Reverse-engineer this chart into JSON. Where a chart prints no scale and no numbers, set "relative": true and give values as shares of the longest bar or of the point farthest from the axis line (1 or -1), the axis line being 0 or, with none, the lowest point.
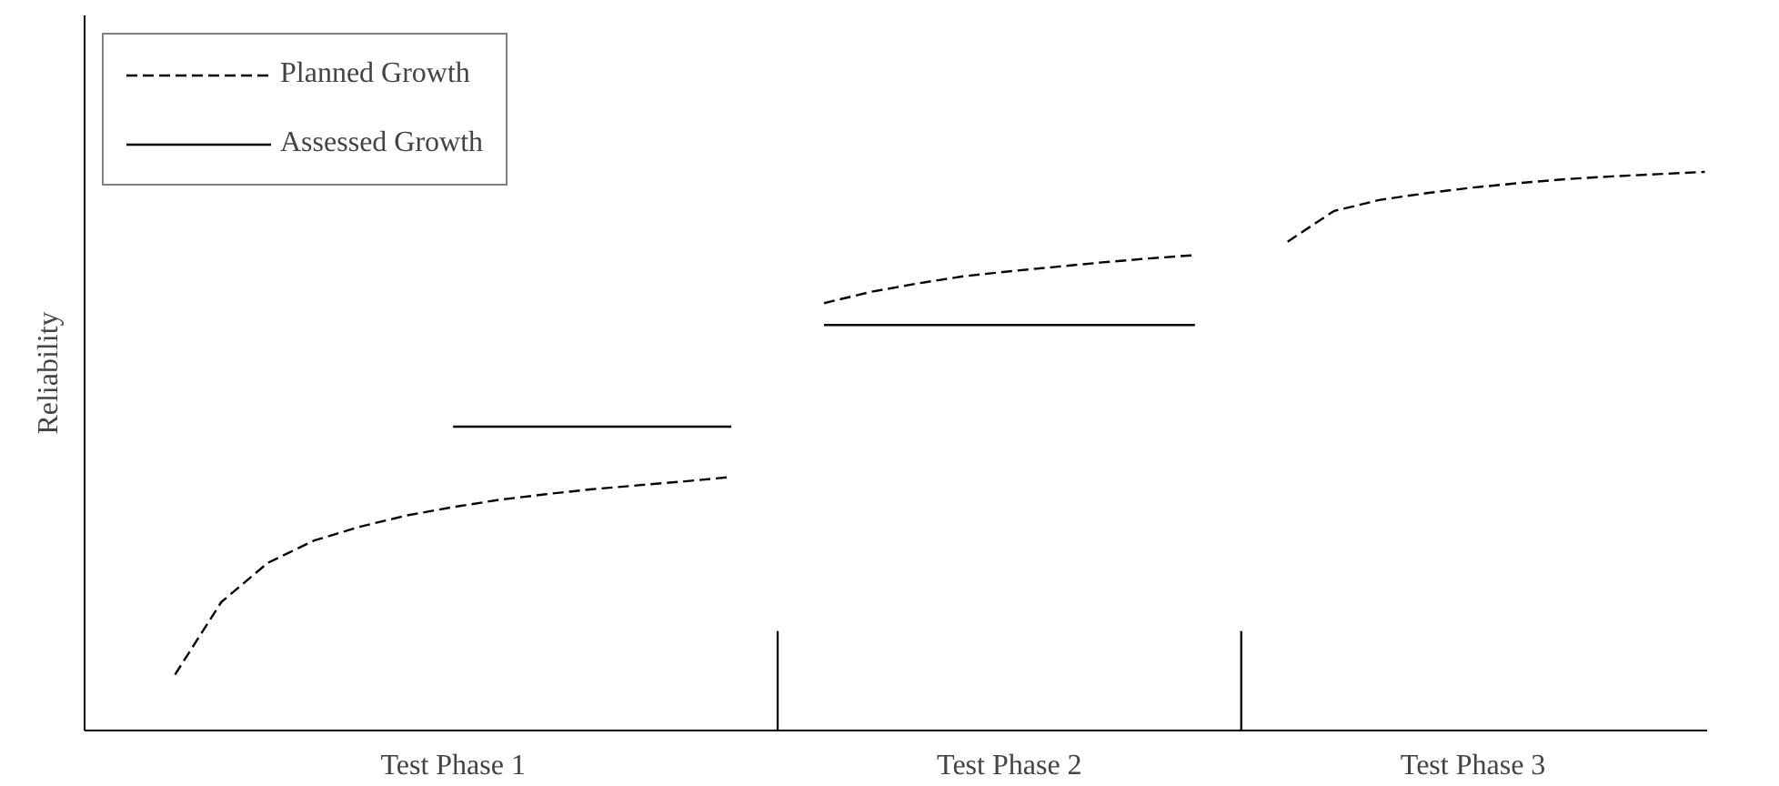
{
  "chart_data": {
    "type": "line",
    "relative": true,
    "ylabel": "Reliability",
    "grid": false,
    "legend": "top left",
    "marker": "none",
    "categories": [
      null,
      null,
      null,
      null,
      null,
      null,
      null,
      "Test Phase 1",
      null,
      null,
      null,
      null,
      null,
      null,
      null,
      null,
      null,
      null,
      null,
      "Test Phase 2",
      null,
      null,
      null,
      null,
      null,
      null,
      null,
      null,
      null,
      "Test Phase 3",
      null,
      null,
      null,
      null,
      null
    ],
    "series": [
      {
        "name": "Planned Growth",
        "color": "#000000",
        "line_style": "dashed",
        "values": [
          null,
          0.1,
          0.23,
          0.3,
          0.34,
          0.365,
          0.385,
          0.4,
          0.413,
          0.423,
          0.432,
          0.439,
          0.446,
          0.454,
          null,
          0.765,
          0.785,
          0.8,
          0.813,
          0.822,
          0.83,
          0.838,
          0.845,
          0.851,
          null,
          0.875,
          0.93,
          0.95,
          0.962,
          0.972,
          0.98,
          0.987,
          0.992,
          0.996,
          1.0
        ]
      },
      {
        "name": "Assessed Growth",
        "color": "#000000",
        "line_style": "solid",
        "values": [
          null,
          null,
          null,
          null,
          null,
          null,
          null,
          0.544,
          0.544,
          0.544,
          0.544,
          0.544,
          0.544,
          0.544,
          null,
          0.726,
          0.726,
          0.726,
          0.726,
          0.726,
          0.726,
          0.726,
          0.726,
          0.726,
          null,
          null,
          null,
          null,
          null,
          null,
          null,
          null,
          null,
          null,
          null
        ]
      },
      {
        "type": "bar",
        "color": "#000000",
        "values": [
          null,
          null,
          null,
          null,
          null,
          null,
          null,
          null,
          null,
          null,
          null,
          null,
          null,
          null,
          0.178,
          null,
          null,
          null,
          null,
          null,
          null,
          null,
          null,
          null,
          0.178,
          null,
          null,
          null,
          null,
          null,
          null,
          null,
          null,
          null,
          null
        ]
      }
    ]
  }
}
